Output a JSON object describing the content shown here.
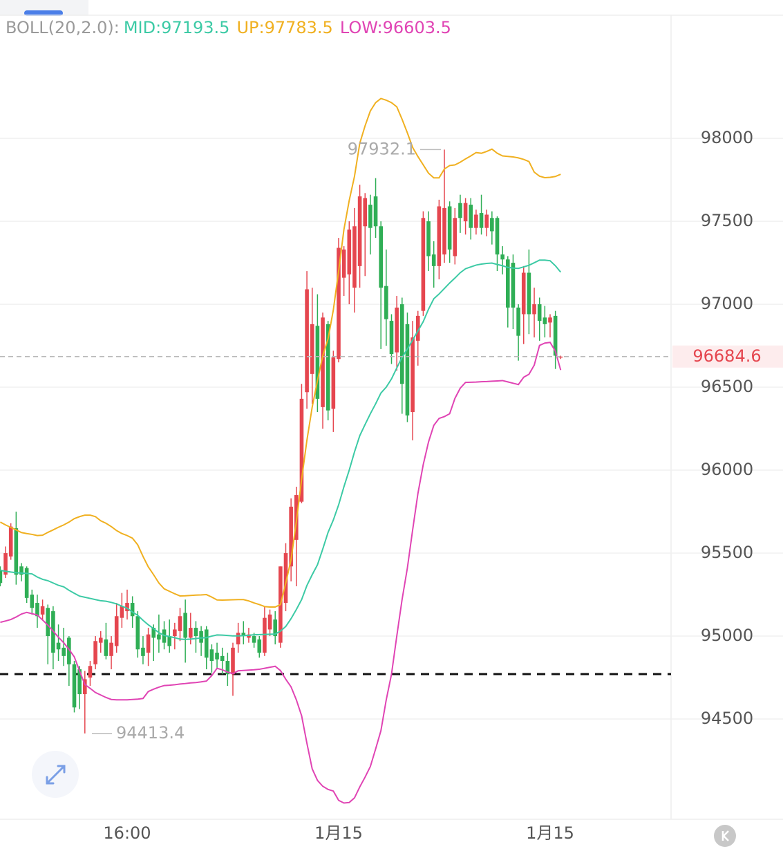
{
  "chart_data": {
    "type": "candlestick",
    "indicator": "BOLL(20,2.0):",
    "up_color": "#e5464f",
    "down_color": "#2fae55",
    "grid": true,
    "ylim": [
      93896,
      98742
    ],
    "yticks": [
      94500,
      95000,
      95500,
      96000,
      96500,
      97000,
      97500,
      98000
    ],
    "reference_line": 94771,
    "categories": [
      null,
      null,
      null,
      null,
      null,
      null,
      null,
      null,
      null,
      null,
      null,
      null,
      null,
      null,
      null,
      null,
      null,
      null,
      null,
      null,
      null,
      null,
      null,
      null,
      "16:00",
      null,
      null,
      null,
      null,
      null,
      null,
      null,
      null,
      null,
      null,
      null,
      null,
      null,
      null,
      null,
      null,
      null,
      null,
      null,
      null,
      null,
      null,
      null,
      null,
      null,
      null,
      null,
      null,
      null,
      null,
      null,
      null,
      null,
      null,
      null,
      null,
      null,
      null,
      null,
      "1月15",
      null,
      null,
      null,
      null,
      null,
      null,
      null,
      null,
      null,
      null,
      null,
      null,
      null,
      null,
      null,
      null,
      null,
      null,
      null,
      null,
      null,
      null,
      null,
      null,
      null,
      null,
      null,
      null,
      null,
      null,
      null,
      null,
      null,
      null,
      null,
      null,
      null,
      null,
      null,
      "1月15",
      null,
      null
    ],
    "open": [
      95400,
      95370,
      95480,
      95650,
      95420,
      95410,
      95250,
      95200,
      95130,
      95170,
      95150,
      94960,
      94930,
      94990,
      94830,
      94800,
      94650,
      94750,
      94830,
      94960,
      94980,
      94880,
      94940,
      95110,
      95150,
      95200,
      95120,
      94930,
      94900,
      95050,
      95010,
      95040,
      95000,
      95000,
      95030,
      95140,
      94990,
      95050,
      95030,
      95040,
      94920,
      94900,
      94880,
      94850,
      94770,
      94950,
      95020,
      94990,
      95000,
      94980,
      94900,
      95040,
      95100,
      94960,
      95200,
      95420,
      95580,
      95810,
      96470,
      96580,
      96870,
      96380,
      96880,
      96370,
      96670,
      97160,
      97180,
      97100,
      97230,
      97470,
      97600,
      97650,
      97470,
      97110,
      96900,
      96710,
      97000,
      96880,
      96350,
      96780,
      96960,
      97500,
      97300,
      97230,
      97300,
      97590,
      97290,
      97610,
      97500,
      97600,
      97460,
      97550,
      97460,
      97520,
      97520,
      97300,
      97270,
      97250,
      96980,
      96940,
      97190,
      96940,
      97000,
      96920,
      96890,
      96930,
      96680
    ],
    "high": [
      95420,
      95540,
      95680,
      95750,
      95440,
      95420,
      95280,
      95250,
      95220,
      95190,
      95180,
      95070,
      95050,
      95000,
      94850,
      94820,
      94790,
      94850,
      95000,
      95030,
      95080,
      95000,
      95200,
      95260,
      95280,
      95240,
      95150,
      95000,
      95050,
      95070,
      95130,
      95090,
      95100,
      95080,
      95170,
      95220,
      95140,
      95090,
      95060,
      95060,
      94950,
      94960,
      94930,
      94900,
      94960,
      95080,
      95090,
      95050,
      95020,
      95000,
      95180,
      95160,
      95150,
      95420,
      95560,
      95830,
      95900,
      96520,
      97200,
      97100,
      97060,
      96950,
      96900,
      96720,
      97400,
      97350,
      97500,
      97580,
      97720,
      97670,
      97660,
      97760,
      97500,
      97330,
      96940,
      97050,
      97040,
      96950,
      96900,
      96960,
      97560,
      97560,
      97380,
      97630,
      97932.1,
      97620,
      97580,
      97660,
      97640,
      97640,
      97570,
      97660,
      97570,
      97560,
      97530,
      97350,
      97290,
      97300,
      97000,
      97230,
      97330,
      97100,
      97040,
      96990,
      96940,
      96960,
      96690
    ],
    "low": [
      95300,
      95350,
      95460,
      95310,
      95330,
      95200,
      95130,
      95050,
      95100,
      94830,
      94800,
      94850,
      94820,
      94700,
      94540,
      94560,
      94413.4,
      94700,
      94800,
      94900,
      94860,
      94800,
      94900,
      95050,
      95100,
      95050,
      94870,
      94830,
      94820,
      94850,
      94900,
      94920,
      94900,
      94920,
      94970,
      94840,
      94950,
      94900,
      94880,
      94800,
      94780,
      94800,
      94770,
      94700,
      94640,
      94900,
      94950,
      94960,
      94930,
      94870,
      94880,
      95000,
      94950,
      94930,
      95150,
      95330,
      95300,
      95800,
      96370,
      96400,
      96350,
      96250,
      96300,
      96230,
      96650,
      97050,
      97000,
      96950,
      97100,
      97170,
      97300,
      97400,
      96730,
      96750,
      96640,
      96600,
      96340,
      96290,
      96180,
      96630,
      96930,
      97200,
      97100,
      97150,
      97250,
      97250,
      97240,
      97430,
      97420,
      97390,
      97420,
      97420,
      97410,
      97360,
      97200,
      97180,
      96860,
      96850,
      96660,
      96760,
      96820,
      96800,
      96780,
      96800,
      96800,
      96610,
      96670
    ],
    "close": [
      95320,
      95500,
      95660,
      95370,
      95370,
      95230,
      95170,
      95120,
      95180,
      95000,
      94900,
      94920,
      94880,
      94830,
      94570,
      94650,
      94740,
      94820,
      94970,
      94990,
      94880,
      94960,
      95120,
      95180,
      95200,
      95120,
      94920,
      94880,
      95010,
      94990,
      94980,
      94960,
      94940,
      95040,
      95120,
      94990,
      95050,
      95000,
      94960,
      94870,
      94850,
      94860,
      94850,
      94770,
      94930,
      95020,
      95000,
      95010,
      94960,
      94900,
      95110,
      95130,
      95000,
      95420,
      95500,
      95780,
      95850,
      96430,
      97090,
      96880,
      96430,
      96920,
      96360,
      96680,
      97340,
      97330,
      97450,
      97470,
      97650,
      97640,
      97460,
      97470,
      97100,
      96910,
      96700,
      96980,
      96520,
      96330,
      96800,
      96930,
      97520,
      97290,
      97230,
      97590,
      97580,
      97330,
      97520,
      97520,
      97610,
      97460,
      97540,
      97460,
      97540,
      97440,
      97300,
      97270,
      96980,
      96980,
      96810,
      97190,
      96940,
      97000,
      96900,
      96880,
      96920,
      96690,
      96684.6
    ],
    "series": [
      {
        "name": "MID:97193.5",
        "color": "#3ccaa5",
        "values": [
          95396,
          95391,
          95386,
          95382,
          95380,
          95378,
          95375,
          95356,
          95342,
          95334,
          95320,
          95306,
          95297,
          95276,
          95258,
          95241,
          95234,
          95227,
          95220,
          95213,
          95210,
          95203,
          95194,
          95180,
          95168,
          95145,
          95125,
          95095,
          95068,
          95045,
          95021,
          95004,
          94997,
          94990,
          94982,
          94980,
          94982,
          94985,
          94989,
          94991,
          95000,
          95007,
          95006,
          95004,
          95001,
          95001,
          95003,
          95005,
          95008,
          95009,
          95010,
          95011,
          95012,
          95030,
          95058,
          95105,
          95160,
          95220,
          95305,
          95370,
          95430,
          95525,
          95625,
          95700,
          95791,
          95900,
          96000,
          96110,
          96208,
          96275,
          96340,
          96400,
          96465,
          96500,
          96550,
          96616,
          96680,
          96730,
          96784,
          96840,
          96895,
          96970,
          97033,
          97062,
          97095,
          97128,
          97158,
          97190,
          97214,
          97225,
          97236,
          97242,
          97246,
          97248,
          97240,
          97232,
          97222,
          97218,
          97216,
          97225,
          97235,
          97250,
          97266,
          97266,
          97262,
          97232,
          97193.5
        ]
      },
      {
        "name": "UP:97783.5",
        "color": "#f0b020",
        "values": [
          95687,
          95670,
          95655,
          95640,
          95624,
          95618,
          95613,
          95606,
          95608,
          95625,
          95640,
          95656,
          95670,
          95687,
          95708,
          95720,
          95729,
          95729,
          95720,
          95695,
          95680,
          95660,
          95636,
          95618,
          95606,
          95590,
          95550,
          95480,
          95417,
          95370,
          95320,
          95285,
          95270,
          95255,
          95242,
          95243,
          95245,
          95247,
          95248,
          95250,
          95235,
          95218,
          95217,
          95218,
          95219,
          95220,
          95220,
          95212,
          95200,
          95190,
          95178,
          95175,
          95175,
          95190,
          95320,
          95460,
          95690,
          95945,
          96180,
          96380,
          96540,
          96690,
          96791,
          96966,
          97200,
          97450,
          97625,
          97771,
          97970,
          98075,
          98165,
          98215,
          98240,
          98230,
          98215,
          98190,
          98115,
          98033,
          97945,
          97890,
          97840,
          97790,
          97762,
          97762,
          97815,
          97836,
          97840,
          97856,
          97876,
          97894,
          97914,
          97910,
          97921,
          97935,
          97910,
          97894,
          97891,
          97888,
          97882,
          97873,
          97860,
          97796,
          97772,
          97763,
          97765,
          97770,
          97783.5
        ]
      },
      {
        "name": "LOW:96603.5",
        "color": "#e044b4",
        "values": [
          95083,
          95091,
          95100,
          95115,
          95133,
          95143,
          95135,
          95127,
          95097,
          95066,
          95030,
          94993,
          94960,
          94920,
          94875,
          94790,
          94708,
          94685,
          94660,
          94645,
          94630,
          94618,
          94616,
          94616,
          94616,
          94618,
          94620,
          94624,
          94666,
          94680,
          94692,
          94702,
          94704,
          94707,
          94711,
          94714,
          94718,
          94720,
          94724,
          94729,
          94762,
          94806,
          94797,
          94783,
          94774,
          94791,
          94793,
          94795,
          94797,
          94800,
          94806,
          94812,
          94818,
          94792,
          94740,
          94694,
          94616,
          94520,
          94354,
          94200,
          94130,
          94095,
          94076,
          94066,
          94010,
          93994,
          93997,
          94025,
          94091,
          94150,
          94214,
          94320,
          94430,
          94615,
          94770,
          95000,
          95220,
          95410,
          95640,
          95860,
          96033,
          96170,
          96270,
          96312,
          96323,
          96340,
          96433,
          96494,
          96529,
          96530,
          96531,
          96533,
          96534,
          96536,
          96538,
          96540,
          96532,
          96524,
          96516,
          96560,
          96578,
          96633,
          96752,
          96766,
          96770,
          96717,
          96603.5
        ]
      }
    ]
  }
}
